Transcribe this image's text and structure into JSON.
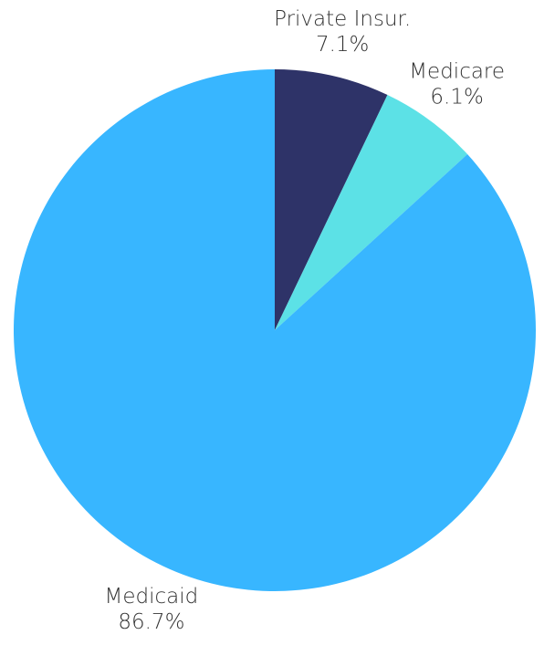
{
  "chart_data": {
    "type": "pie",
    "categories": [
      "Private Insur.",
      "Medicare",
      "Medicaid"
    ],
    "values": [
      7.1,
      6.1,
      86.7
    ],
    "value_labels": [
      "7.1%",
      "6.1%",
      "86.7%"
    ],
    "colors": [
      "#2e3368",
      "#5ce1e6",
      "#38b6ff"
    ]
  }
}
